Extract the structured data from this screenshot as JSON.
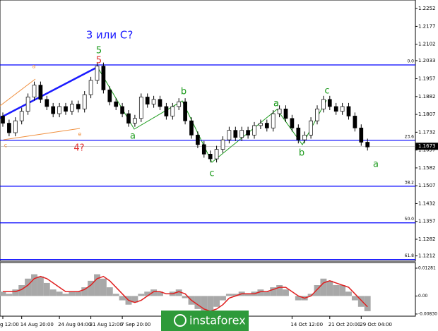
{
  "chart_data": [
    {
      "type": "candlestick",
      "categories": [
        "g 12:00",
        null,
        null,
        "14 Aug 20:00",
        null,
        null,
        null,
        null,
        null,
        "24 Aug 04:00",
        null,
        null,
        null,
        null,
        "31 Aug 12:00",
        null,
        null,
        null,
        null,
        "7 Sep 20:00",
        null,
        null,
        null,
        null,
        null,
        null,
        null,
        null,
        null,
        null,
        null,
        null,
        null,
        null,
        null,
        null,
        null,
        null,
        null,
        null,
        null,
        null,
        null,
        null,
        null,
        null,
        "14 Oct 12:00",
        null,
        null,
        null,
        null,
        null,
        "21 Oct 20:00",
        null,
        null,
        null,
        null,
        "29 Oct 04:00",
        null
      ],
      "open": [
        1.18,
        1.177,
        1.173,
        1.178,
        1.182,
        1.188,
        1.193,
        1.187,
        1.184,
        1.181,
        1.184,
        1.182,
        1.185,
        1.183,
        1.189,
        1.195,
        1.201,
        1.191,
        1.186,
        1.184,
        1.181,
        1.177,
        1.179,
        1.188,
        1.185,
        1.187,
        1.184,
        1.18,
        1.184,
        1.186,
        1.178,
        1.172,
        1.168,
        1.164,
        1.162,
        1.166,
        1.17,
        1.174,
        1.171,
        1.174,
        1.172,
        1.176,
        1.177,
        1.175,
        1.181,
        1.183,
        1.179,
        1.175,
        1.17,
        1.172,
        1.178,
        1.183,
        1.187,
        1.184,
        1.182,
        1.184,
        1.18,
        1.175,
        1.169
      ],
      "high": [
        1.1815,
        1.1785,
        1.1795,
        1.1835,
        1.1895,
        1.1945,
        1.1945,
        1.1885,
        1.1855,
        1.1855,
        1.1855,
        1.1865,
        1.1865,
        1.1905,
        1.1965,
        1.2025,
        1.2025,
        1.1925,
        1.1875,
        1.1855,
        1.1825,
        1.1805,
        1.1895,
        1.1895,
        1.1885,
        1.1885,
        1.1855,
        1.1855,
        1.1875,
        1.1875,
        1.1795,
        1.1735,
        1.1695,
        1.1655,
        1.1675,
        1.1715,
        1.1755,
        1.1755,
        1.1755,
        1.1755,
        1.1775,
        1.1785,
        1.1785,
        1.1825,
        1.1845,
        1.1845,
        1.1805,
        1.1765,
        1.1735,
        1.1795,
        1.1845,
        1.1885,
        1.1885,
        1.1855,
        1.1855,
        1.1855,
        1.1815,
        1.1765,
        1.1705
      ],
      "low": [
        1.1755,
        1.1715,
        1.1715,
        1.1765,
        1.1805,
        1.1865,
        1.1855,
        1.1825,
        1.1795,
        1.1795,
        1.1805,
        1.1805,
        1.1815,
        1.1815,
        1.1875,
        1.1935,
        1.1895,
        1.1845,
        1.1825,
        1.1795,
        1.1755,
        1.1755,
        1.1775,
        1.1835,
        1.1835,
        1.1825,
        1.1785,
        1.1785,
        1.1825,
        1.1765,
        1.1705,
        1.1665,
        1.1625,
        1.1605,
        1.1605,
        1.1645,
        1.1685,
        1.1695,
        1.1695,
        1.1705,
        1.1705,
        1.1745,
        1.1735,
        1.1735,
        1.1795,
        1.1775,
        1.1735,
        1.1685,
        1.1685,
        1.1705,
        1.1765,
        1.1815,
        1.1825,
        1.1805,
        1.1805,
        1.1785,
        1.1735,
        1.1675,
        1.1655
      ],
      "close": [
        1.177,
        1.173,
        1.178,
        1.182,
        1.188,
        1.193,
        1.187,
        1.184,
        1.181,
        1.184,
        1.182,
        1.185,
        1.183,
        1.189,
        1.195,
        1.201,
        1.191,
        1.186,
        1.184,
        1.181,
        1.177,
        1.179,
        1.188,
        1.185,
        1.187,
        1.184,
        1.18,
        1.184,
        1.186,
        1.178,
        1.172,
        1.168,
        1.164,
        1.162,
        1.166,
        1.17,
        1.174,
        1.171,
        1.174,
        1.172,
        1.176,
        1.177,
        1.175,
        1.181,
        1.183,
        1.179,
        1.175,
        1.17,
        1.172,
        1.178,
        1.183,
        1.187,
        1.184,
        1.182,
        1.184,
        1.18,
        1.175,
        1.169,
        1.167
      ],
      "color": "#000000",
      "ylim": [
        1.119,
        1.2288
      ],
      "yticks": [
        1.2252,
        1.2177,
        1.2102,
        1.2033,
        1.1957,
        1.1882,
        1.1807,
        1.1732,
        1.1657,
        1.1582,
        1.1507,
        1.1432,
        1.1357,
        1.1282,
        1.1212
      ],
      "current_price": 1.1673,
      "levels": [
        {
          "value": 1.2015,
          "label": "0.0"
        },
        {
          "value": 1.1698,
          "label": "23.6"
        },
        {
          "value": 1.1505,
          "label": "38.2"
        },
        {
          "value": 1.1351,
          "label": "50.0"
        },
        {
          "value": 1.1197,
          "label": "61.8"
        }
      ],
      "level_color": "#0000ff",
      "annotations": [
        {
          "text": "3 или С?",
          "color": "#1a1aff"
        },
        {
          "text": "5",
          "color": "#1a9a1a"
        },
        {
          "text": "5",
          "color": "#e03030"
        },
        {
          "text": "4?",
          "color": "#e03030"
        },
        {
          "text": "a",
          "color": "#1a9a1a"
        },
        {
          "text": "b",
          "color": "#1a9a1a"
        },
        {
          "text": "c",
          "color": "#1a9a1a"
        },
        {
          "text": "a",
          "color": "#1a9a1a"
        },
        {
          "text": "b",
          "color": "#1a9a1a"
        },
        {
          "text": "c",
          "color": "#1a9a1a"
        },
        {
          "text": "a",
          "color": "#1a9a1a"
        },
        {
          "text": "a",
          "color": "#f09040"
        },
        {
          "text": "c",
          "color": "#f09040"
        },
        {
          "text": "e",
          "color": "#f09040"
        }
      ]
    },
    {
      "type": "bar",
      "values": [
        0.002,
        0.001,
        0.003,
        0.005,
        0.008,
        0.01,
        0.009,
        0.006,
        0.003,
        0.002,
        0.001,
        0.002,
        0.002,
        0.004,
        0.007,
        0.01,
        0.008,
        0.004,
        0.001,
        -0.002,
        -0.004,
        -0.003,
        0.001,
        0.002,
        0.003,
        0.002,
        0.0,
        0.002,
        0.003,
        -0.001,
        -0.004,
        -0.006,
        -0.007,
        -0.007,
        -0.005,
        -0.002,
        0.001,
        0.001,
        0.002,
        0.001,
        0.002,
        0.003,
        0.002,
        0.004,
        0.005,
        0.003,
        0.0,
        -0.002,
        -0.002,
        0.001,
        0.005,
        0.008,
        0.007,
        0.005,
        0.005,
        0.002,
        -0.002,
        -0.005,
        -0.007
      ],
      "color": "#a8a8a8",
      "signal": {
        "color": "#e02020",
        "values": [
          0.002,
          0.002,
          0.002,
          0.003,
          0.005,
          0.008,
          0.009,
          0.008,
          0.006,
          0.004,
          0.002,
          0.002,
          0.002,
          0.003,
          0.005,
          0.008,
          0.009,
          0.007,
          0.004,
          0.001,
          -0.002,
          -0.003,
          -0.002,
          0.0,
          0.002,
          0.002,
          0.001,
          0.001,
          0.002,
          0.001,
          -0.002,
          -0.004,
          -0.006,
          -0.007,
          -0.006,
          -0.004,
          -0.001,
          0.0,
          0.001,
          0.001,
          0.001,
          0.002,
          0.002,
          0.003,
          0.004,
          0.004,
          0.002,
          0.0,
          -0.001,
          0.0,
          0.003,
          0.006,
          0.007,
          0.006,
          0.005,
          0.004,
          0.001,
          -0.002,
          -0.005
        ]
      },
      "ylim": [
        -0.0093,
        0.0154
      ],
      "yticks": [
        0.01281,
        {
          "value": 0,
          "label": "0.00"
        },
        {
          "value": -0.0083,
          "label": "-0.00830"
        }
      ]
    }
  ],
  "watermark": "instaforex"
}
